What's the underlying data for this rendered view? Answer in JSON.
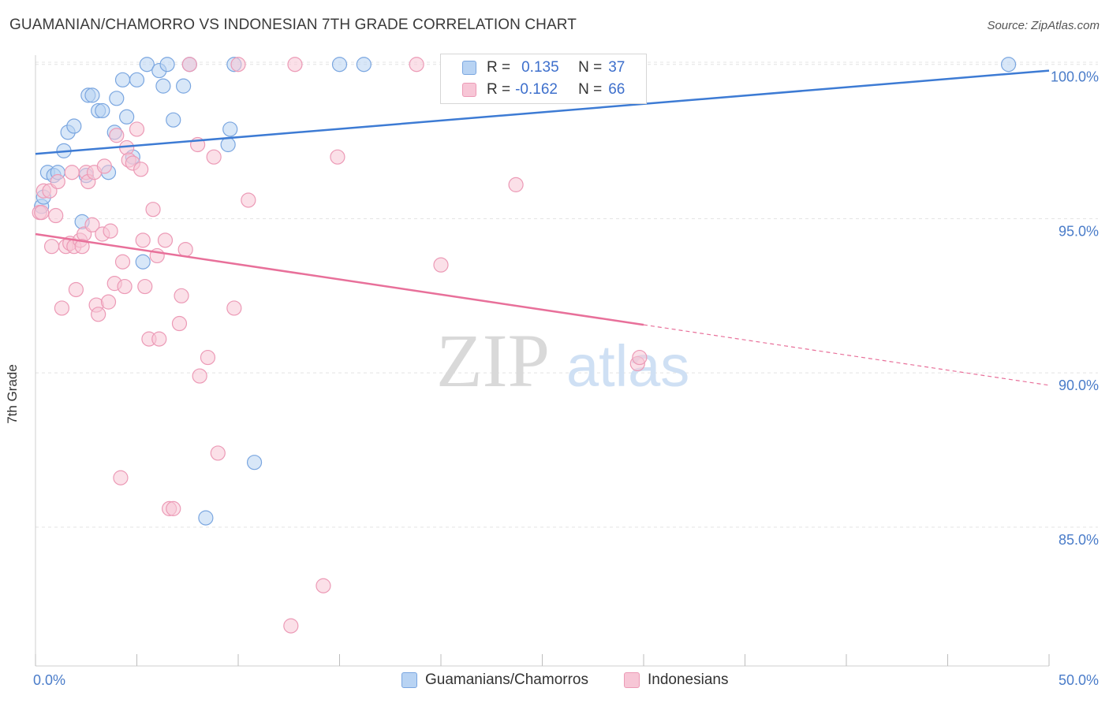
{
  "title": "GUAMANIAN/CHAMORRO VS INDONESIAN 7TH GRADE CORRELATION CHART",
  "source": "Source: ZipAtlas.com",
  "watermark": {
    "zip": "ZIP",
    "atlas": "atlas"
  },
  "legend": {
    "rows": [
      {
        "r_label": "R =",
        "r_value": "0.135",
        "n_label": "N =",
        "n_value": "37"
      },
      {
        "r_label": "R =",
        "r_value": "-0.162",
        "n_label": "N =",
        "n_value": "66"
      }
    ]
  },
  "bottom_legend": [
    "Guamanians/Chamorros",
    "Indonesians"
  ],
  "colors": {
    "blue": "#3d7bd4",
    "blue_fill": "#b8d3f3",
    "blue_stroke": "#7aa6e0",
    "pink": "#e8709a",
    "pink_fill": "#f7c6d6",
    "pink_stroke": "#ec9ab6",
    "axis_text": "#4a7cc9",
    "grid": "#e4e4e4"
  },
  "chart_data": {
    "type": "scatter",
    "title": "GUAMANIAN/CHAMORRO VS INDONESIAN 7TH GRADE CORRELATION CHART",
    "xlabel": "",
    "ylabel": "7th Grade",
    "xlim": [
      0,
      50
    ],
    "ylim": [
      80.5,
      100.3
    ],
    "x_tick_labels": [
      "0.0%",
      "50.0%"
    ],
    "y_ticks": [
      85,
      90,
      95,
      100
    ],
    "y_tick_labels": [
      "85.0%",
      "90.0%",
      "95.0%",
      "100.0%"
    ],
    "grid": true,
    "series": [
      {
        "name": "Guamanians/Chamorros",
        "color": "blue",
        "r": 0.135,
        "n": 37,
        "trend": {
          "x0": 0,
          "y0": 97.1,
          "x1": 50,
          "y1": 99.8,
          "dashed_from": null
        },
        "points": [
          [
            0.3,
            95.4
          ],
          [
            0.4,
            95.7
          ],
          [
            0.6,
            96.5
          ],
          [
            0.9,
            96.4
          ],
          [
            1.1,
            96.5
          ],
          [
            1.4,
            97.2
          ],
          [
            1.6,
            97.8
          ],
          [
            1.9,
            98.0
          ],
          [
            2.3,
            94.9
          ],
          [
            2.5,
            96.4
          ],
          [
            2.6,
            99.0
          ],
          [
            2.8,
            99.0
          ],
          [
            3.1,
            98.5
          ],
          [
            3.3,
            98.5
          ],
          [
            3.6,
            96.5
          ],
          [
            3.9,
            97.8
          ],
          [
            4.0,
            98.9
          ],
          [
            4.3,
            99.5
          ],
          [
            4.5,
            98.3
          ],
          [
            4.8,
            97.0
          ],
          [
            5.0,
            99.5
          ],
          [
            5.3,
            93.6
          ],
          [
            5.5,
            100.0
          ],
          [
            6.1,
            99.8
          ],
          [
            6.3,
            99.3
          ],
          [
            6.5,
            100.0
          ],
          [
            6.8,
            98.2
          ],
          [
            7.3,
            99.3
          ],
          [
            7.6,
            100.0
          ],
          [
            8.4,
            85.3
          ],
          [
            9.5,
            97.4
          ],
          [
            9.6,
            97.9
          ],
          [
            9.8,
            100.0
          ],
          [
            10.8,
            87.1
          ],
          [
            15.0,
            100.0
          ],
          [
            16.2,
            100.0
          ],
          [
            48.0,
            100.0
          ]
        ]
      },
      {
        "name": "Indonesians",
        "color": "pink",
        "r": -0.162,
        "n": 66,
        "trend": {
          "x0": 0,
          "y0": 94.5,
          "x1": 50,
          "y1": 89.6,
          "dashed_from": 30
        },
        "points": [
          [
            0.2,
            95.2
          ],
          [
            0.3,
            95.2
          ],
          [
            0.4,
            95.9
          ],
          [
            0.7,
            95.9
          ],
          [
            0.8,
            94.1
          ],
          [
            1.0,
            95.1
          ],
          [
            1.1,
            96.2
          ],
          [
            1.3,
            92.1
          ],
          [
            1.5,
            94.1
          ],
          [
            1.7,
            94.2
          ],
          [
            1.8,
            96.5
          ],
          [
            1.9,
            94.1
          ],
          [
            2.0,
            92.7
          ],
          [
            2.2,
            94.3
          ],
          [
            2.4,
            94.5
          ],
          [
            2.5,
            96.5
          ],
          [
            2.6,
            96.2
          ],
          [
            2.8,
            94.8
          ],
          [
            2.9,
            96.5
          ],
          [
            3.0,
            92.2
          ],
          [
            3.1,
            91.9
          ],
          [
            3.3,
            94.5
          ],
          [
            3.4,
            96.7
          ],
          [
            3.6,
            92.3
          ],
          [
            3.7,
            94.6
          ],
          [
            3.9,
            92.9
          ],
          [
            4.0,
            97.7
          ],
          [
            4.3,
            93.6
          ],
          [
            4.4,
            92.8
          ],
          [
            4.5,
            97.3
          ],
          [
            4.6,
            96.9
          ],
          [
            4.8,
            96.8
          ],
          [
            5.0,
            97.9
          ],
          [
            5.2,
            96.6
          ],
          [
            5.3,
            94.3
          ],
          [
            5.4,
            92.8
          ],
          [
            5.6,
            91.1
          ],
          [
            5.8,
            95.3
          ],
          [
            6.0,
            93.8
          ],
          [
            6.1,
            91.1
          ],
          [
            6.4,
            94.3
          ],
          [
            6.6,
            85.6
          ],
          [
            6.8,
            85.6
          ],
          [
            7.1,
            91.6
          ],
          [
            7.2,
            92.5
          ],
          [
            7.4,
            94.0
          ],
          [
            7.6,
            100.0
          ],
          [
            8.0,
            97.4
          ],
          [
            8.1,
            89.9
          ],
          [
            8.5,
            90.5
          ],
          [
            8.8,
            97.0
          ],
          [
            9.0,
            87.4
          ],
          [
            9.8,
            92.1
          ],
          [
            10.0,
            100.0
          ],
          [
            10.5,
            95.6
          ],
          [
            12.6,
            81.8
          ],
          [
            12.8,
            100.0
          ],
          [
            14.2,
            83.1
          ],
          [
            14.9,
            97.0
          ],
          [
            18.8,
            100.0
          ],
          [
            20.0,
            93.5
          ],
          [
            23.7,
            96.1
          ],
          [
            29.7,
            90.3
          ],
          [
            29.8,
            90.5
          ],
          [
            4.2,
            86.6
          ],
          [
            2.3,
            94.1
          ]
        ]
      }
    ]
  }
}
